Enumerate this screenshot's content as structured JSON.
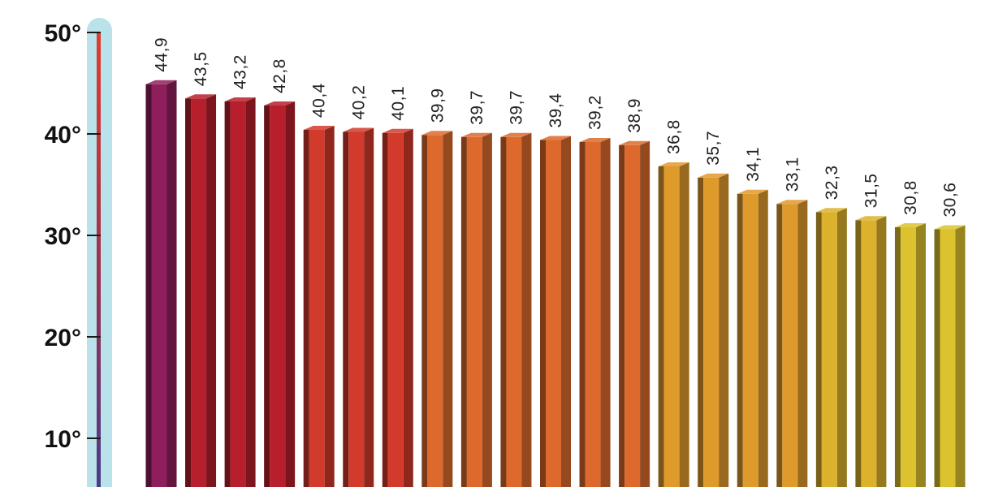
{
  "chart_data": {
    "type": "bar",
    "style": "3d-bar-thermometer",
    "ylim": [
      0,
      50
    ],
    "yticks": [
      {
        "value": 10,
        "label": "10°"
      },
      {
        "value": 20,
        "label": "20°"
      },
      {
        "value": 30,
        "label": "30°"
      },
      {
        "value": 40,
        "label": "40°"
      },
      {
        "value": 50,
        "label": "50°"
      }
    ],
    "values": [
      44.9,
      43.5,
      43.2,
      42.8,
      40.4,
      40.2,
      40.1,
      39.9,
      39.7,
      39.7,
      39.4,
      39.2,
      38.9,
      36.8,
      35.7,
      34.1,
      33.1,
      32.3,
      31.5,
      30.8,
      30.6
    ],
    "value_labels": [
      "44,9",
      "43,5",
      "43,2",
      "42,8",
      "40,4",
      "40,2",
      "40,1",
      "39,9",
      "39,7",
      "39,7",
      "39,4",
      "39,2",
      "38,9",
      "36,8",
      "35,7",
      "34,1",
      "33,1",
      "32,3",
      "31,5",
      "30,8",
      "30,6"
    ],
    "bar_colors": [
      "#8e1f5c",
      "#b81f2c",
      "#b81f2c",
      "#b81f2c",
      "#d23a2b",
      "#d23a2b",
      "#d23a2b",
      "#dd6a2c",
      "#dd6a2c",
      "#dd6a2c",
      "#dd6a2c",
      "#dd6a2c",
      "#dd6a2c",
      "#df9a2c",
      "#df9a2c",
      "#df9a2c",
      "#df9a2c",
      "#dcb22c",
      "#dcb22c",
      "#dcc22e",
      "#dcc22e"
    ],
    "thermometer": {
      "tube_color": "#b9e2ea",
      "mercury_top_color": "#e23b2e",
      "mercury_bottom_color": "#4b3a8c"
    }
  }
}
